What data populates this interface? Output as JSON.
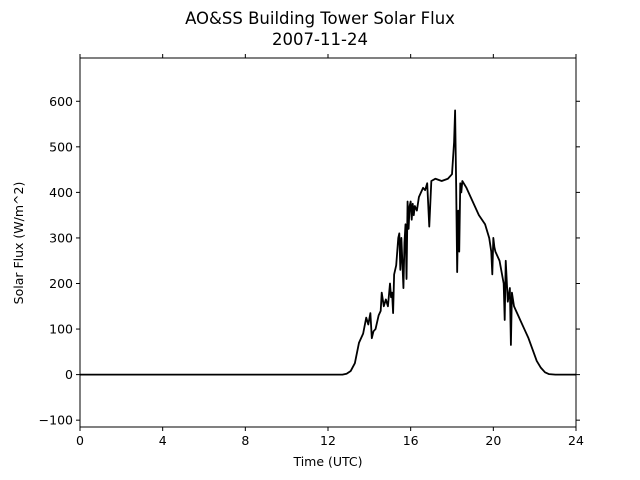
{
  "chart_data": {
    "type": "line",
    "title": "AO&SS Building Tower Solar Flux",
    "subtitle": "2007-11-24",
    "xlabel": "Time (UTC)",
    "ylabel": "Solar Flux (W/m^2)",
    "xlim": [
      0,
      24
    ],
    "ylim": [
      -115,
      695
    ],
    "xticks": [
      0,
      4,
      8,
      12,
      16,
      20,
      24
    ],
    "yticks": [
      -100,
      0,
      100,
      200,
      300,
      400,
      500,
      600
    ],
    "grid": false,
    "line_color": "#000000",
    "series": [
      {
        "x": [
          0,
          12.7,
          12.9,
          13.1,
          13.3,
          13.5,
          13.7,
          13.85,
          13.95,
          14.05,
          14.12,
          14.2,
          14.3,
          14.45,
          14.55,
          14.6,
          14.7,
          14.8,
          14.9,
          15.0,
          15.05,
          15.1,
          15.15,
          15.2,
          15.3,
          15.4,
          15.45,
          15.5,
          15.55,
          15.65,
          15.7,
          15.75,
          15.8,
          15.85,
          15.9,
          15.95,
          16.0,
          16.05,
          16.1,
          16.15,
          16.2,
          16.3,
          16.4,
          16.5,
          16.6,
          16.7,
          16.8,
          16.9,
          17.0,
          17.2,
          17.5,
          17.8,
          18.0,
          18.1,
          18.15,
          18.2,
          18.25,
          18.3,
          18.35,
          18.4,
          18.45,
          18.5,
          18.7,
          19.0,
          19.3,
          19.6,
          19.8,
          19.9,
          19.95,
          20.0,
          20.05,
          20.1,
          20.3,
          20.5,
          20.55,
          20.6,
          20.7,
          20.8,
          20.85,
          20.9,
          21.0,
          21.1,
          21.2,
          21.3,
          21.5,
          21.7,
          21.9,
          22.1,
          22.3,
          22.5,
          22.7,
          23.0,
          24.0
        ],
        "y": [
          0,
          0,
          2,
          8,
          25,
          70,
          90,
          125,
          110,
          135,
          80,
          95,
          100,
          130,
          140,
          180,
          150,
          165,
          150,
          200,
          170,
          180,
          135,
          220,
          240,
          300,
          310,
          230,
          300,
          190,
          290,
          330,
          210,
          380,
          320,
          370,
          380,
          340,
          375,
          350,
          370,
          360,
          390,
          400,
          410,
          405,
          420,
          325,
          425,
          430,
          425,
          430,
          440,
          510,
          580,
          420,
          225,
          360,
          270,
          420,
          400,
          425,
          410,
          380,
          350,
          330,
          300,
          270,
          220,
          300,
          280,
          270,
          250,
          200,
          120,
          250,
          160,
          190,
          65,
          180,
          150,
          140,
          130,
          120,
          100,
          80,
          55,
          30,
          15,
          5,
          1,
          0,
          0
        ]
      }
    ]
  }
}
